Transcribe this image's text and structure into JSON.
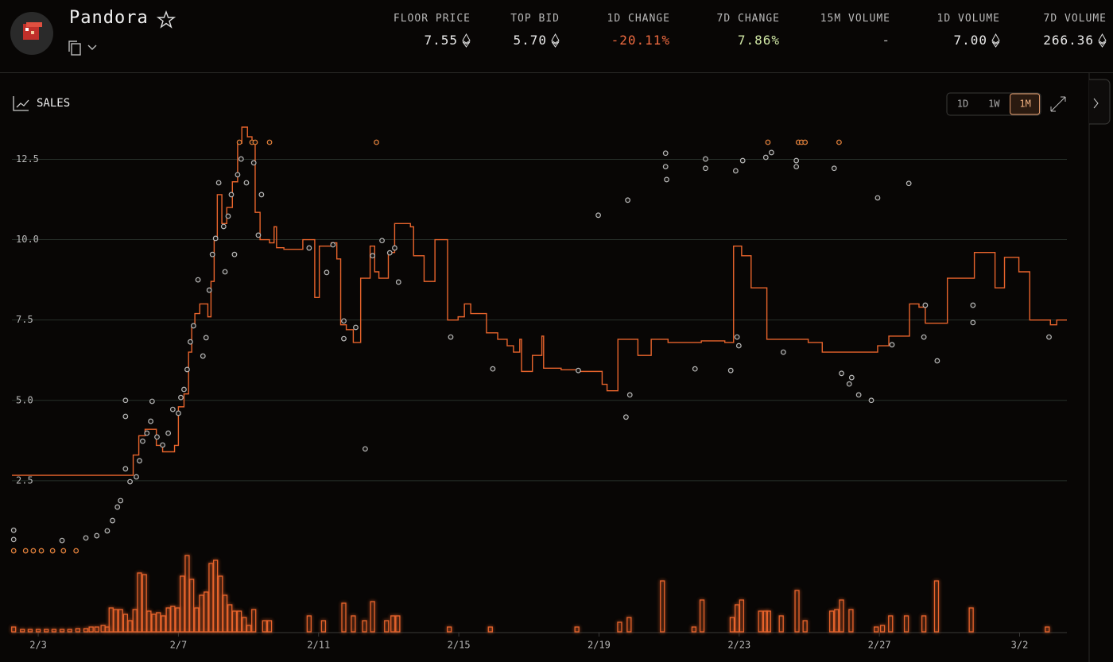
{
  "header": {
    "title": "Pandora",
    "stats": [
      {
        "label": "FLOOR PRICE",
        "value": "7.55"
      },
      {
        "label": "TOP BID",
        "value": "5.70"
      },
      {
        "label": "1D CHANGE",
        "value": "-20.11%"
      },
      {
        "label": "7D CHANGE",
        "value": "7.86%"
      },
      {
        "label": "15M VOLUME",
        "value": "-"
      },
      {
        "label": "1D VOLUME",
        "value": "7.00"
      },
      {
        "label": "7D VOLUME",
        "value": "266.36"
      }
    ]
  },
  "panel": {
    "title": "SALES",
    "ranges": [
      "1D",
      "1W",
      "1M"
    ],
    "active_range": "1M"
  },
  "chart_data": {
    "type": "step",
    "xlim": [
      2.25,
      32.35
    ],
    "ylim": [
      0,
      13.5
    ],
    "xticks": [
      {
        "value": 3,
        "label": "2/3"
      },
      {
        "value": 7,
        "label": "2/7"
      },
      {
        "value": 11,
        "label": "2/11"
      },
      {
        "value": 15,
        "label": "2/15"
      },
      {
        "value": 19,
        "label": "2/19"
      },
      {
        "value": 23,
        "label": "2/23"
      },
      {
        "value": 27,
        "label": "2/27"
      },
      {
        "value": 31,
        "label": "3/2"
      }
    ],
    "yticks": [
      2.5,
      {
        "value": 5,
        "label": "5.0"
      },
      7.5,
      {
        "value": 10,
        "label": "10.0"
      },
      12.5
    ],
    "grid": true,
    "series": [
      {
        "color": "#e8642c",
        "x": [
          2.25,
          5.71,
          5.87,
          6.05,
          6.37,
          6.55,
          6.89,
          7.0,
          7.16,
          7.29,
          7.38,
          7.47,
          7.61,
          7.84,
          7.93,
          8.02,
          8.11,
          8.24,
          8.38,
          8.54,
          8.69,
          8.81,
          8.97,
          9.1,
          9.19,
          9.33,
          9.6,
          9.73,
          9.8,
          10.01,
          10.55,
          10.89,
          11.02,
          11.36,
          11.52,
          11.63,
          11.79,
          11.99,
          12.2,
          12.36,
          12.47,
          12.6,
          12.72,
          12.99,
          13.17,
          13.62,
          13.71,
          14.01,
          14.32,
          14.68,
          14.98,
          15.16,
          15.34,
          15.79,
          16.11,
          16.38,
          16.56,
          16.74,
          16.79,
          17.1,
          17.37,
          17.42,
          17.92,
          18.41,
          19.09,
          19.23,
          19.54,
          20.11,
          20.49,
          20.97,
          21.92,
          22.59,
          22.84,
          23.07,
          23.34,
          23.79,
          24.97,
          25.37,
          26.95,
          27.27,
          27.86,
          28.13,
          28.31,
          28.94,
          29.71,
          30.3,
          30.57,
          30.98,
          31.29,
          31.88,
          32.06
        ],
        "values": [
          2.67,
          3.3,
          3.9,
          4.1,
          3.6,
          3.4,
          3.6,
          4.8,
          5.2,
          6.5,
          7.3,
          7.7,
          8.0,
          7.6,
          8.7,
          10.0,
          11.4,
          10.5,
          11.0,
          11.8,
          13.0,
          13.5,
          13.2,
          13.0,
          10.85,
          10.0,
          9.9,
          10.4,
          9.75,
          9.7,
          10.0,
          8.2,
          9.8,
          9.9,
          9.4,
          7.35,
          7.2,
          6.8,
          8.8,
          8.8,
          9.8,
          9.0,
          8.8,
          9.6,
          10.5,
          10.4,
          9.5,
          8.7,
          10.0,
          7.5,
          7.6,
          8.0,
          7.7,
          7.1,
          6.9,
          6.7,
          6.5,
          6.9,
          5.9,
          6.4,
          7.0,
          6.0,
          5.95,
          5.9,
          5.5,
          5.3,
          6.9,
          6.4,
          6.9,
          6.8,
          6.85,
          6.8,
          9.8,
          9.5,
          8.5,
          6.9,
          6.8,
          6.5,
          6.7,
          7.0,
          8.0,
          7.9,
          7.4,
          8.8,
          9.6,
          8.5,
          9.45,
          9.0,
          7.5,
          7.35,
          7.5
        ]
      }
    ],
    "sales": [
      {
        "color": "#b8b8b8",
        "x": [
          2.3,
          2.3,
          3.68,
          4.36,
          4.67,
          4.97,
          5.12,
          5.26,
          5.35,
          5.49,
          5.49,
          5.49,
          5.62,
          5.8,
          5.89,
          5.98,
          6.1,
          6.21,
          6.25,
          6.39,
          6.55,
          6.71,
          6.84,
          7.0,
          7.07,
          7.16,
          7.25,
          7.34,
          7.43,
          7.56,
          7.7,
          7.79,
          7.88,
          7.97,
          8.06,
          8.15,
          8.29,
          8.33,
          8.42,
          8.51,
          8.6,
          8.69,
          8.79,
          8.94,
          9.15,
          9.28,
          9.37,
          10.73,
          11.23,
          11.41,
          11.72,
          11.72,
          12.06,
          12.33,
          12.54,
          12.81,
          13.03,
          13.17,
          13.28,
          14.77,
          15.97,
          18.41,
          19.77,
          19.88,
          18.98,
          19.82,
          20.9,
          20.9,
          20.93,
          22.04,
          22.04,
          21.74,
          22.76,
          22.94,
          22.99,
          22.9,
          23.1,
          23.76,
          23.92,
          24.26,
          24.63,
          24.63,
          25.71,
          25.92,
          26.21,
          26.14,
          26.41,
          26.77,
          26.95,
          27.36,
          27.84,
          28.27,
          28.31,
          28.65,
          29.67,
          29.67,
          31.84
        ],
        "values": [
          0.96,
          0.67,
          0.64,
          0.72,
          0.79,
          0.94,
          1.26,
          1.68,
          1.88,
          2.87,
          4.5,
          5.0,
          2.47,
          2.62,
          3.12,
          3.73,
          3.98,
          4.35,
          4.97,
          3.86,
          3.61,
          3.98,
          4.72,
          4.6,
          5.09,
          5.34,
          5.96,
          6.82,
          7.32,
          8.75,
          6.38,
          6.95,
          8.43,
          9.54,
          10.04,
          11.77,
          10.41,
          9.0,
          10.73,
          11.4,
          9.54,
          12.02,
          12.51,
          11.77,
          12.39,
          10.14,
          11.4,
          9.74,
          8.98,
          9.84,
          7.47,
          6.92,
          7.27,
          3.49,
          9.5,
          9.97,
          9.59,
          9.74,
          8.68,
          6.97,
          5.98,
          5.93,
          4.48,
          5.17,
          10.76,
          11.23,
          12.69,
          12.27,
          11.87,
          12.51,
          12.22,
          5.98,
          5.93,
          6.97,
          6.7,
          12.14,
          12.46,
          12.56,
          12.71,
          6.5,
          12.46,
          12.27,
          12.22,
          5.84,
          5.71,
          5.51,
          5.17,
          5.0,
          11.3,
          6.73,
          11.75,
          6.97,
          7.96,
          6.23,
          7.96,
          7.42,
          6.97
        ]
      },
      {
        "color": "#e8823a",
        "x": [
          2.3,
          2.64,
          2.86,
          3.09,
          3.41,
          3.72,
          4.08,
          8.74,
          9.1,
          9.19,
          9.6,
          12.65,
          23.82,
          24.69,
          24.78,
          24.88,
          25.85
        ],
        "values": [
          0.32,
          0.32,
          0.32,
          0.32,
          0.32,
          0.32,
          0.32,
          13.03,
          13.03,
          13.03,
          13.03,
          13.03,
          13.03,
          13.03,
          13.03,
          13.03,
          13.03
        ]
      }
    ],
    "volume": {
      "color": "#e8642c",
      "ylim": [
        0,
        100
      ],
      "x": [
        2.3,
        2.55,
        2.77,
        3.0,
        3.23,
        3.45,
        3.68,
        3.9,
        4.13,
        4.36,
        4.51,
        4.67,
        4.85,
        4.97,
        5.08,
        5.21,
        5.35,
        5.49,
        5.62,
        5.76,
        5.89,
        6.03,
        6.16,
        6.3,
        6.43,
        6.57,
        6.71,
        6.84,
        6.98,
        7.11,
        7.25,
        7.38,
        7.52,
        7.66,
        7.79,
        7.93,
        8.06,
        8.2,
        8.33,
        8.47,
        8.6,
        8.74,
        8.88,
        9.01,
        9.15,
        9.46,
        9.6,
        10.73,
        11.14,
        11.72,
        11.99,
        12.31,
        12.54,
        12.94,
        13.12,
        13.26,
        14.73,
        15.9,
        18.37,
        19.59,
        19.86,
        20.81,
        21.71,
        21.94,
        22.8,
        22.94,
        23.07,
        23.61,
        23.75,
        23.84,
        24.2,
        24.65,
        24.88,
        25.64,
        25.78,
        25.92,
        26.19,
        26.91,
        27.09,
        27.32,
        27.77,
        28.27,
        28.63,
        29.62,
        31.79
      ],
      "values": [
        6,
        3,
        3,
        3,
        3,
        3,
        3,
        3,
        4,
        4,
        6,
        6,
        8,
        6,
        30,
        28,
        28,
        22,
        14,
        28,
        74,
        72,
        26,
        22,
        24,
        20,
        30,
        32,
        30,
        70,
        96,
        66,
        30,
        46,
        50,
        86,
        90,
        70,
        46,
        34,
        26,
        26,
        18,
        8,
        28,
        14,
        14,
        20,
        14,
        36,
        20,
        14,
        38,
        14,
        20,
        20,
        6,
        6,
        6,
        12,
        18,
        64,
        6,
        40,
        18,
        34,
        40,
        26,
        26,
        26,
        20,
        52,
        14,
        26,
        28,
        40,
        28,
        6,
        8,
        20,
        20,
        20,
        64,
        30,
        6
      ]
    }
  }
}
